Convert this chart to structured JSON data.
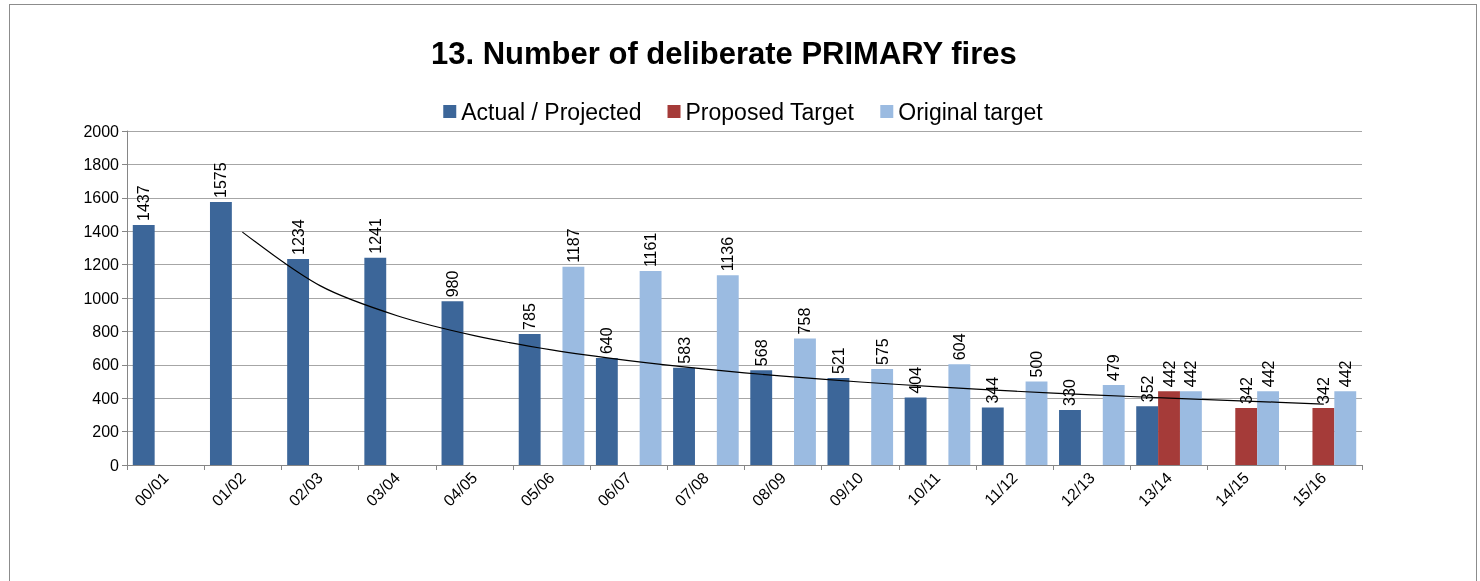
{
  "chart_data": {
    "type": "bar",
    "title": "13. Number of deliberate PRIMARY fires",
    "categories": [
      "00/01",
      "01/02",
      "02/03",
      "03/04",
      "04/05",
      "05/06",
      "06/07",
      "07/08",
      "08/09",
      "09/10",
      "10/11",
      "11/12",
      "12/13",
      "13/14",
      "14/15",
      "15/16"
    ],
    "series": [
      {
        "name": "Actual / Projected",
        "color": "#3c6699",
        "values": [
          1437,
          1575,
          1234,
          1241,
          980,
          785,
          640,
          583,
          568,
          521,
          404,
          344,
          330,
          352,
          null,
          null
        ],
        "value_labels": [
          "1437",
          "1575",
          "1234",
          "1241",
          "980",
          "785",
          "640",
          "583",
          "568",
          "521",
          "404",
          "344",
          "330",
          "352",
          null,
          null
        ]
      },
      {
        "name": "Proposed Target",
        "color": "#a53b39",
        "values": [
          null,
          null,
          null,
          null,
          null,
          null,
          null,
          null,
          null,
          null,
          null,
          null,
          null,
          442,
          342,
          342
        ],
        "value_labels": [
          null,
          null,
          null,
          null,
          null,
          null,
          null,
          null,
          null,
          null,
          null,
          null,
          null,
          "442",
          "342",
          "342"
        ]
      },
      {
        "name": "Original target",
        "color": "#9bbbe1",
        "values": [
          null,
          null,
          null,
          null,
          null,
          1187,
          1161,
          1136,
          758,
          575,
          604,
          500,
          479,
          442,
          442,
          442
        ],
        "value_labels": [
          null,
          null,
          null,
          null,
          null,
          "1187",
          "1161",
          "1136",
          "758",
          "575",
          "604",
          "500",
          "479",
          "442",
          "442",
          "442"
        ]
      },
      {
        "type": "line",
        "color": "#000000",
        "marker": "none",
        "values": [
          null,
          1393,
          1074,
          894,
          775,
          689,
          625,
          574,
          532,
          497,
          468,
          442,
          420,
          401,
          383,
          365
        ]
      }
    ],
    "ylim": [
      0,
      2000
    ],
    "yticks": [
      0,
      200,
      400,
      600,
      800,
      1000,
      1200,
      1400,
      1600,
      1800,
      2000
    ],
    "grid": "y",
    "legend": "top"
  }
}
